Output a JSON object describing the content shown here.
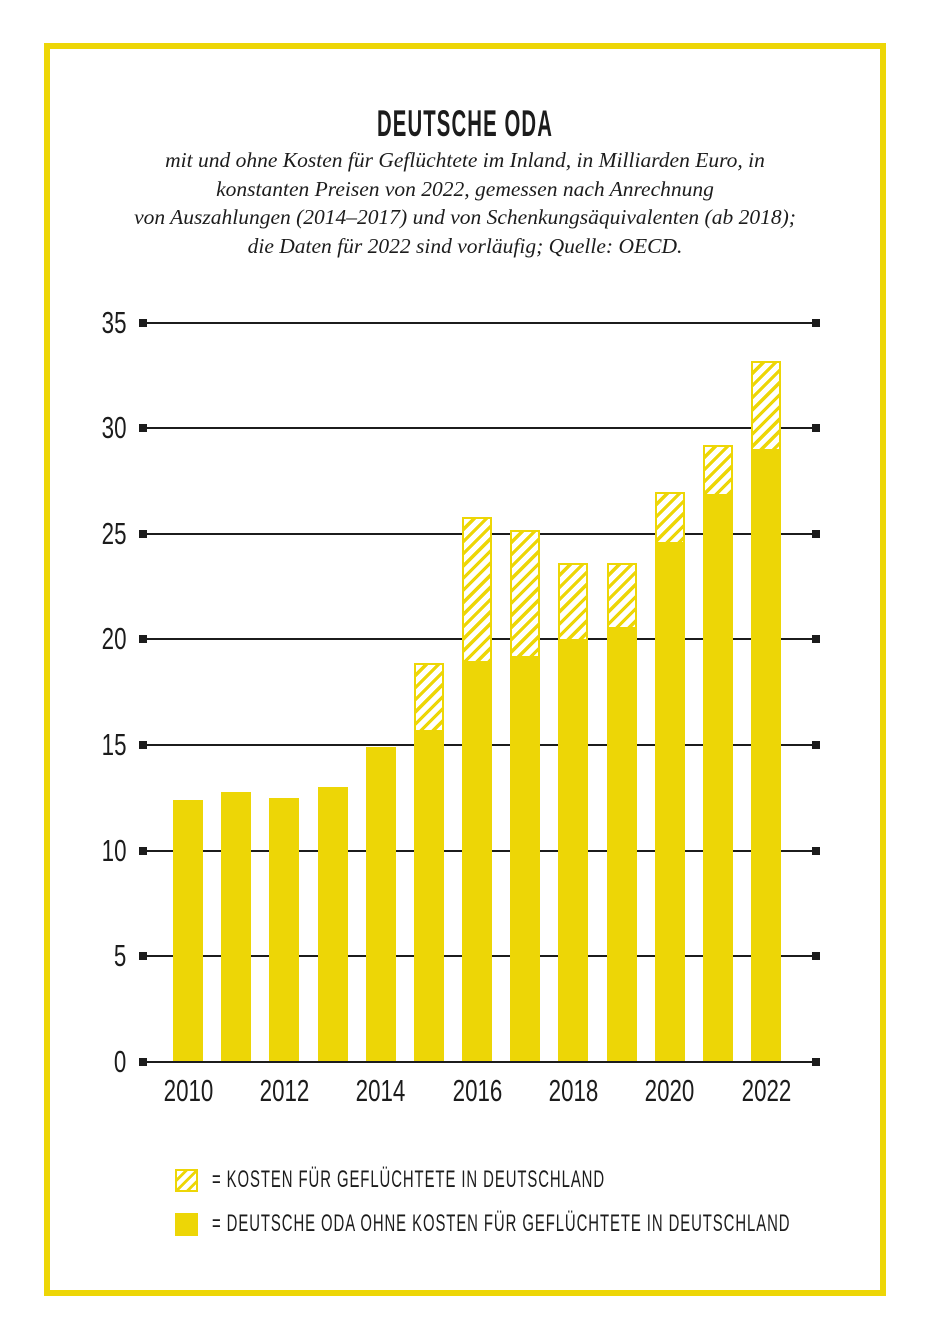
{
  "page": {
    "title": "DEUTSCHE ODA",
    "subtitle_lines": [
      "mit und ohne Kosten für Geflüchtete im Inland, in Milliarden Euro, in",
      "konstanten Preisen von 2022, gemessen nach Anrechnung",
      "von Auszahlungen (2014–2017) und von Schenkungsäquivalenten (ab 2018);",
      "die Daten für 2022 sind vorläufig; Quelle: OECD."
    ]
  },
  "colors": {
    "yellow": "#edd606",
    "ink": "#1c1c1c"
  },
  "chart_data": {
    "type": "bar",
    "stacked": true,
    "title": "DEUTSCHE ODA",
    "subtitle": "mit und ohne Kosten für Geflüchtete im Inland, in Milliarden Euro, in konstanten Preisen von 2022, gemessen nach Anrechnung von Auszahlungen (2014–2017) und von Schenkungsäquivalenten (ab 2018); die Daten für 2022 sind vorläufig; Quelle: OECD.",
    "unit": "Milliarden Euro",
    "x": [
      2010,
      2011,
      2012,
      2013,
      2014,
      2015,
      2016,
      2017,
      2018,
      2019,
      2020,
      2021,
      2022
    ],
    "series": [
      {
        "name": "Deutsche ODA ohne Kosten für Geflüchtete in Deutschland",
        "style": "solid-yellow",
        "values": [
          12.4,
          12.8,
          12.5,
          13.0,
          14.9,
          15.7,
          19.0,
          19.2,
          20.0,
          20.6,
          24.6,
          26.9,
          29.0
        ]
      },
      {
        "name": "Kosten für Geflüchtete in Deutschland",
        "style": "hatched-yellow",
        "values": [
          0,
          0,
          0,
          0,
          0,
          3.2,
          6.8,
          6.0,
          3.6,
          3.0,
          2.4,
          2.3,
          4.2
        ]
      }
    ],
    "totals": [
      12.4,
      12.8,
      12.5,
      13.0,
      14.9,
      18.9,
      25.8,
      25.2,
      23.6,
      23.6,
      27.0,
      29.2,
      33.2
    ],
    "ylim": [
      0,
      35
    ],
    "yticks": [
      0,
      5,
      10,
      15,
      20,
      25,
      30,
      35
    ],
    "xtick_labels": [
      "2010",
      "2012",
      "2014",
      "2016",
      "2018",
      "2020",
      "2022"
    ],
    "grid": true,
    "legend_position": "bottom-left"
  },
  "legend": {
    "items": [
      {
        "swatch": "hatched",
        "label": "= KOSTEN FÜR GEFLÜCHTETE IN DEUTSCHLAND"
      },
      {
        "swatch": "solid",
        "label": "= DEUTSCHE ODA OHNE KOSTEN FÜR GEFLÜCHTETE IN DEUTSCHLAND"
      }
    ]
  }
}
